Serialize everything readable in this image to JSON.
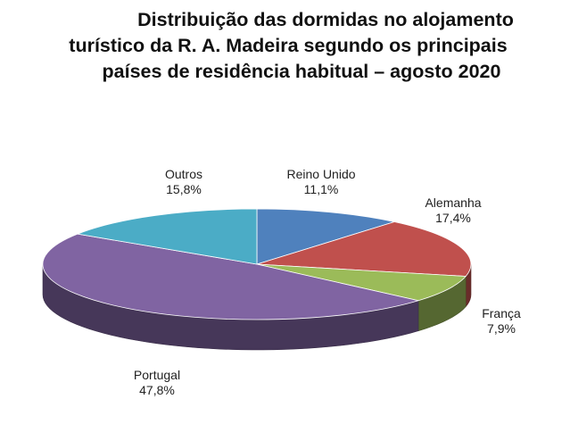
{
  "chart_data": {
    "type": "pie",
    "title_lines": [
      "Distribuição das dormidas no alojamento",
      "turístico da R. A. Madeira segundo os principais",
      "países de residência habitual – agosto 2020"
    ],
    "slices": [
      {
        "label": "Reino Unido",
        "value": 11.1,
        "value_label": "11,1%",
        "color": "#4F81BD"
      },
      {
        "label": "Alemanha",
        "value": 17.4,
        "value_label": "17,4%",
        "color": "#C0504D"
      },
      {
        "label": "França",
        "value": 7.9,
        "value_label": "7,9%",
        "color": "#9BBB59"
      },
      {
        "label": "Portugal",
        "value": 47.8,
        "value_label": "47,8%",
        "color": "#8064A2"
      },
      {
        "label": "Outros",
        "value": 15.8,
        "value_label": "15,8%",
        "color": "#4BACC6"
      }
    ],
    "style": "3d-pie",
    "legend": "none"
  }
}
